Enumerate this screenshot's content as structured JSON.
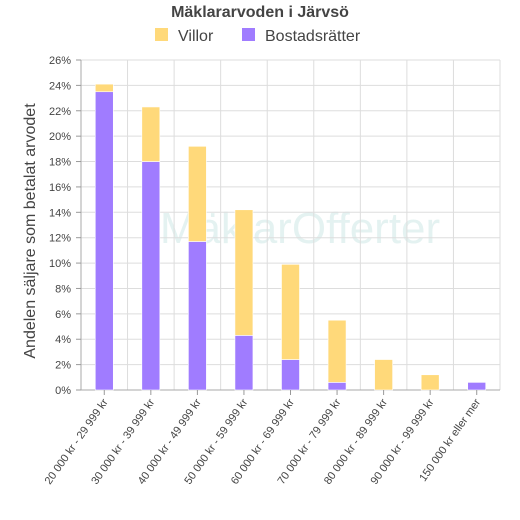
{
  "chart_data": {
    "type": "bar",
    "stacked": true,
    "title": "Mäklararvoden i Järvsö",
    "xlabel": "",
    "ylabel": "Andelen säljare som betalat arvodet",
    "ylim": [
      0,
      26
    ],
    "ytick_step": 2,
    "ytick_suffix": "%",
    "grid": true,
    "legend_position": "top",
    "categories": [
      "20 000 kr - 29 999 kr",
      "30 000 kr - 39 999 kr",
      "40 000 kr - 49 999 kr",
      "50 000 kr - 59 999 kr",
      "60 000 kr - 69 999 kr",
      "70 000 kr - 79 999 kr",
      "80 000 kr - 89 999 kr",
      "90 000 kr - 99 999 kr",
      "150 000 kr eller mer"
    ],
    "series": [
      {
        "name": "Bostadsrätter",
        "color": "#a07cff",
        "values": [
          23.5,
          18.0,
          11.7,
          4.3,
          2.4,
          0.6,
          0.0,
          0.0,
          0.6
        ]
      },
      {
        "name": "Villor",
        "color": "#ffd97a",
        "values": [
          0.6,
          4.3,
          7.5,
          9.9,
          7.5,
          4.9,
          2.4,
          1.2,
          0.0
        ]
      }
    ],
    "legend_order": [
      "Villor",
      "Bostadsrätter"
    ],
    "watermark": "MäklarOfferter"
  }
}
